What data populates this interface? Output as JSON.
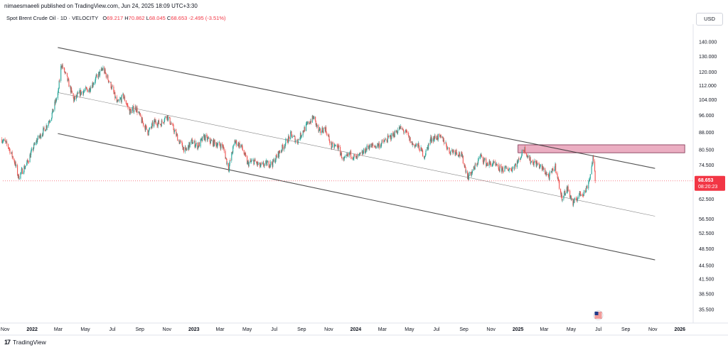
{
  "publisher": "nimaesmaeeli published on TradingView.com, Jun 24, 2025 18:09 UTC+3:30",
  "header": {
    "symbol": "Spot Brent Crude Oil · 1D · VELOCITY",
    "open_label": "O",
    "open": "69.217",
    "high_label": "H",
    "high": "70.862",
    "low_label": "L",
    "low": "68.045",
    "close_label": "C",
    "close": "68.653",
    "change": "-2.495 (-3.51%)"
  },
  "currency": "USD",
  "footer": {
    "logo_text": "TradingView",
    "logo_mark": "17"
  },
  "colors": {
    "up": "#26a69a",
    "down": "#ef5350",
    "channel": "#333333",
    "zone_fill": "#e8a0b7",
    "zone_border": "#7a2b4a",
    "price_line": "#f23645"
  },
  "chart_data": {
    "type": "candlestick",
    "scale": "log",
    "ylim": [
      33.5,
      150
    ],
    "y_ticks": [
      "140.000",
      "130.000",
      "120.000",
      "112.000",
      "104.000",
      "96.000",
      "88.000",
      "80.500",
      "74.500",
      "62.500",
      "56.500",
      "52.500",
      "48.500",
      "44.500",
      "41.500",
      "38.500",
      "35.500"
    ],
    "x_ticks": [
      {
        "label": "Nov",
        "date": "2021-11-01"
      },
      {
        "label": "2022",
        "date": "2022-01-01",
        "bold": true
      },
      {
        "label": "Mar",
        "date": "2022-03-01"
      },
      {
        "label": "May",
        "date": "2022-05-01"
      },
      {
        "label": "Jul",
        "date": "2022-07-01"
      },
      {
        "label": "Sep",
        "date": "2022-09-01"
      },
      {
        "label": "Nov",
        "date": "2022-11-01"
      },
      {
        "label": "2023",
        "date": "2023-01-01",
        "bold": true
      },
      {
        "label": "Mar",
        "date": "2023-03-01"
      },
      {
        "label": "May",
        "date": "2023-05-01"
      },
      {
        "label": "Jul",
        "date": "2023-07-01"
      },
      {
        "label": "Sep",
        "date": "2023-09-01"
      },
      {
        "label": "Nov",
        "date": "2023-11-01"
      },
      {
        "label": "2024",
        "date": "2024-01-01",
        "bold": true
      },
      {
        "label": "Mar",
        "date": "2024-03-01"
      },
      {
        "label": "May",
        "date": "2024-05-01"
      },
      {
        "label": "Jul",
        "date": "2024-07-01"
      },
      {
        "label": "Sep",
        "date": "2024-09-01"
      },
      {
        "label": "Nov",
        "date": "2024-11-01"
      },
      {
        "label": "2025",
        "date": "2025-01-01",
        "bold": true
      },
      {
        "label": "Mar",
        "date": "2025-03-01"
      },
      {
        "label": "May",
        "date": "2025-05-01"
      },
      {
        "label": "Jul",
        "date": "2025-07-01"
      },
      {
        "label": "Sep",
        "date": "2025-09-01"
      },
      {
        "label": "Nov",
        "date": "2025-11-01"
      },
      {
        "label": "2026",
        "date": "2026-01-01",
        "bold": true
      }
    ],
    "last_price": {
      "value": "68.653",
      "countdown": "08:20:23"
    },
    "closes_weekly": [
      [
        "2021-10-25",
        85
      ],
      [
        "2021-11-08",
        82
      ],
      [
        "2021-11-22",
        76
      ],
      [
        "2021-12-01",
        70
      ],
      [
        "2021-12-20",
        75
      ],
      [
        "2022-01-10",
        84
      ],
      [
        "2022-01-31",
        90
      ],
      [
        "2022-02-14",
        96
      ],
      [
        "2022-03-01",
        108
      ],
      [
        "2022-03-08",
        125
      ],
      [
        "2022-03-22",
        115
      ],
      [
        "2022-04-05",
        104
      ],
      [
        "2022-04-20",
        108
      ],
      [
        "2022-05-10",
        110
      ],
      [
        "2022-05-30",
        118
      ],
      [
        "2022-06-10",
        122
      ],
      [
        "2022-06-28",
        112
      ],
      [
        "2022-07-12",
        102
      ],
      [
        "2022-07-26",
        106
      ],
      [
        "2022-08-09",
        98
      ],
      [
        "2022-08-23",
        100
      ],
      [
        "2022-09-06",
        93
      ],
      [
        "2022-09-20",
        88
      ],
      [
        "2022-10-04",
        93
      ],
      [
        "2022-10-18",
        92
      ],
      [
        "2022-11-01",
        96
      ],
      [
        "2022-11-15",
        90
      ],
      [
        "2022-11-29",
        84
      ],
      [
        "2022-12-13",
        80
      ],
      [
        "2022-12-27",
        84
      ],
      [
        "2023-01-10",
        82
      ],
      [
        "2023-01-24",
        86
      ],
      [
        "2023-02-07",
        84
      ],
      [
        "2023-02-21",
        83
      ],
      [
        "2023-03-07",
        82
      ],
      [
        "2023-03-20",
        73
      ],
      [
        "2023-04-03",
        84
      ],
      [
        "2023-04-18",
        82
      ],
      [
        "2023-05-02",
        75
      ],
      [
        "2023-05-16",
        76
      ],
      [
        "2023-05-30",
        74
      ],
      [
        "2023-06-13",
        75
      ],
      [
        "2023-06-27",
        75
      ],
      [
        "2023-07-11",
        79
      ],
      [
        "2023-07-25",
        83
      ],
      [
        "2023-08-08",
        87
      ],
      [
        "2023-08-22",
        84
      ],
      [
        "2023-09-05",
        89
      ],
      [
        "2023-09-19",
        93
      ],
      [
        "2023-09-28",
        95
      ],
      [
        "2023-10-10",
        88
      ],
      [
        "2023-10-24",
        90
      ],
      [
        "2023-11-07",
        82
      ],
      [
        "2023-11-21",
        82
      ],
      [
        "2023-12-05",
        76
      ],
      [
        "2023-12-19",
        79
      ],
      [
        "2024-01-02",
        77
      ],
      [
        "2024-01-16",
        79
      ],
      [
        "2024-01-30",
        82
      ],
      [
        "2024-02-13",
        82
      ],
      [
        "2024-02-27",
        83
      ],
      [
        "2024-03-12",
        85
      ],
      [
        "2024-03-26",
        87
      ],
      [
        "2024-04-09",
        90
      ],
      [
        "2024-04-23",
        88
      ],
      [
        "2024-05-07",
        83
      ],
      [
        "2024-05-21",
        82
      ],
      [
        "2024-06-04",
        78
      ],
      [
        "2024-06-18",
        85
      ],
      [
        "2024-07-02",
        86
      ],
      [
        "2024-07-16",
        85
      ],
      [
        "2024-07-30",
        80
      ],
      [
        "2024-08-13",
        80
      ],
      [
        "2024-08-27",
        78
      ],
      [
        "2024-09-10",
        70
      ],
      [
        "2024-09-24",
        73
      ],
      [
        "2024-10-08",
        78
      ],
      [
        "2024-10-22",
        75
      ],
      [
        "2024-11-05",
        75
      ],
      [
        "2024-11-19",
        73
      ],
      [
        "2024-12-03",
        73
      ],
      [
        "2024-12-17",
        73
      ],
      [
        "2025-01-02",
        76
      ],
      [
        "2025-01-15",
        81
      ],
      [
        "2025-01-29",
        76
      ],
      [
        "2025-02-12",
        75
      ],
      [
        "2025-02-26",
        73
      ],
      [
        "2025-03-12",
        70
      ],
      [
        "2025-03-26",
        74
      ],
      [
        "2025-04-09",
        63
      ],
      [
        "2025-04-23",
        66
      ],
      [
        "2025-05-05",
        61
      ],
      [
        "2025-05-19",
        64
      ],
      [
        "2025-06-02",
        65
      ],
      [
        "2025-06-12",
        70
      ],
      [
        "2025-06-19",
        77
      ],
      [
        "2025-06-23",
        71
      ],
      [
        "2025-06-24",
        68.65
      ]
    ],
    "resistance_zone": {
      "from": "2025-01-01",
      "to": "2026-01-12",
      "low": 79.3,
      "high": 82.6
    },
    "channel": {
      "upper": [
        [
          "2022-02-28",
          136
        ],
        [
          "2025-11-06",
          73.2
        ]
      ],
      "mid": [
        [
          "2022-02-28",
          108
        ],
        [
          "2025-11-06",
          57.3
        ]
      ],
      "lower": [
        [
          "2022-02-28",
          87.5
        ],
        [
          "2025-11-06",
          45.8
        ]
      ]
    },
    "events": [
      {
        "name": "us-flag-icon",
        "date": "2025-07-01"
      }
    ]
  }
}
